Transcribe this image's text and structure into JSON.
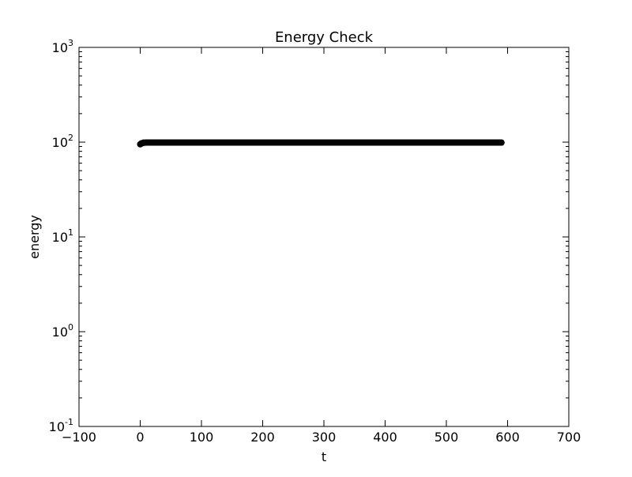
{
  "chart_data": {
    "type": "scatter",
    "title": "Energy Check",
    "xlabel": "t",
    "ylabel": "energy",
    "x_scale": "linear",
    "y_scale": "log",
    "xlim": [
      -100,
      700
    ],
    "ylim": [
      0.1,
      1000
    ],
    "x_ticks": [
      -100,
      0,
      100,
      200,
      300,
      400,
      500,
      600,
      700
    ],
    "x_tick_labels": [
      "−100",
      "0",
      "100",
      "200",
      "300",
      "400",
      "500",
      "600",
      "700"
    ],
    "y_ticks": [
      {
        "value": 0.1,
        "base": "10",
        "exponent": "-1"
      },
      {
        "value": 1,
        "base": "10",
        "exponent": "0"
      },
      {
        "value": 10,
        "base": "10",
        "exponent": "1"
      },
      {
        "value": 100,
        "base": "10",
        "exponent": "2"
      },
      {
        "value": 1000,
        "base": "10",
        "exponent": "3"
      }
    ],
    "grid": false,
    "marker_color": "#000000",
    "series": [
      {
        "x": [
          0,
          2,
          5,
          10,
          20,
          50,
          100,
          150,
          200,
          250,
          300,
          350,
          400,
          450,
          500,
          550,
          590
        ],
        "y": [
          95,
          97,
          98.5,
          99,
          99,
          99,
          99,
          99,
          99,
          99,
          99,
          99,
          99,
          99,
          99,
          99,
          99
        ]
      }
    ]
  }
}
